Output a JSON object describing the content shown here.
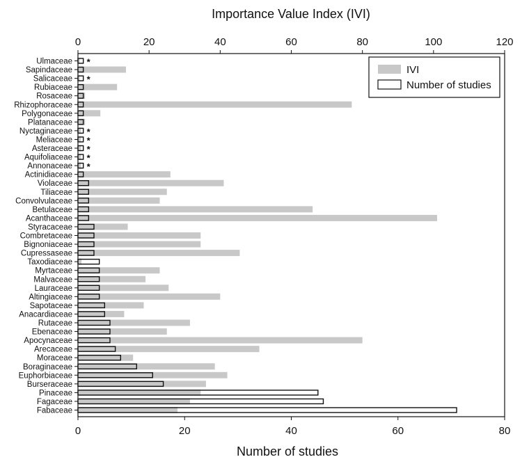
{
  "chart_data": {
    "type": "bar",
    "orientation": "horizontal",
    "top_axis": {
      "label": "Importance Value Index (IVI)",
      "range": [
        0,
        120
      ],
      "ticks": [
        "0",
        "20",
        "40",
        "60",
        "80",
        "100",
        "120"
      ]
    },
    "bottom_axis": {
      "label": "Number of studies",
      "range": [
        0,
        80
      ],
      "ticks": [
        "0",
        "20",
        "40",
        "60",
        "80"
      ]
    },
    "legend": {
      "position": "top-right",
      "items": [
        "IVI",
        "Number of studies"
      ]
    },
    "categories": [
      "Ulmaceae",
      "Sapindaceae",
      "Salicaceae",
      "Rubiaceae",
      "Rosaceae",
      "Rhizophoraceae",
      "Polygonaceae",
      "Platanaceae",
      "Nyctaginaceae",
      "Meliaceae",
      "Asteraceae",
      "Aquifoliaceae",
      "Annonaceae",
      "Actinidiaceae",
      "Violaceae",
      "Tiliaceae",
      "Convolvulaceae",
      "Betulaceae",
      "Acanthaceae",
      "Styracaceae",
      "Combretaceae",
      "Bignoniaceae",
      "Cupressaseae",
      "Taxodiaceae",
      "Myrtaceae",
      "Malvaceae",
      "Lauraceae",
      "Altingiaceae",
      "Sapotaceae",
      "Anacardiaceae",
      "Rutaceae",
      "Ebenaceae",
      "Apocynaceae",
      "Arecaceae",
      "Moraceae",
      "Boraginaceae",
      "Euphorbiaceae",
      "Burseraceae",
      "Pinaceae",
      "Fagaceae",
      "Fabaceae"
    ],
    "series": [
      {
        "name": "IVI",
        "color": "#c8c8c8",
        "values": [
          0.5,
          13.5,
          0.5,
          11,
          2,
          77,
          6.3,
          2,
          0.8,
          0.8,
          0.8,
          0.8,
          0.8,
          26,
          41,
          25,
          23,
          66,
          101,
          14,
          34.5,
          34.5,
          45.5,
          1,
          23,
          19,
          25.5,
          40,
          18.5,
          13,
          31.5,
          25,
          80,
          51,
          15.5,
          38.5,
          42,
          36,
          34.5,
          31.5,
          28
        ]
      },
      {
        "name": "Number of studies",
        "color": "#ffffff",
        "values": [
          1,
          1,
          1,
          1,
          1,
          1,
          1,
          1,
          1,
          1,
          1,
          1,
          1,
          1,
          2,
          2,
          2,
          2,
          2,
          3,
          3,
          3,
          3,
          4,
          4,
          4,
          4,
          4,
          5,
          5,
          6,
          6,
          6,
          7,
          8,
          11,
          14,
          16,
          45,
          46,
          71
        ]
      }
    ],
    "annotations": {
      "marker": "*",
      "categories": [
        "Ulmaceae",
        "Salicaceae",
        "Nyctaginaceae",
        "Meliaceae",
        "Asteraceae",
        "Aquifoliaceae",
        "Annonaceae"
      ]
    }
  }
}
